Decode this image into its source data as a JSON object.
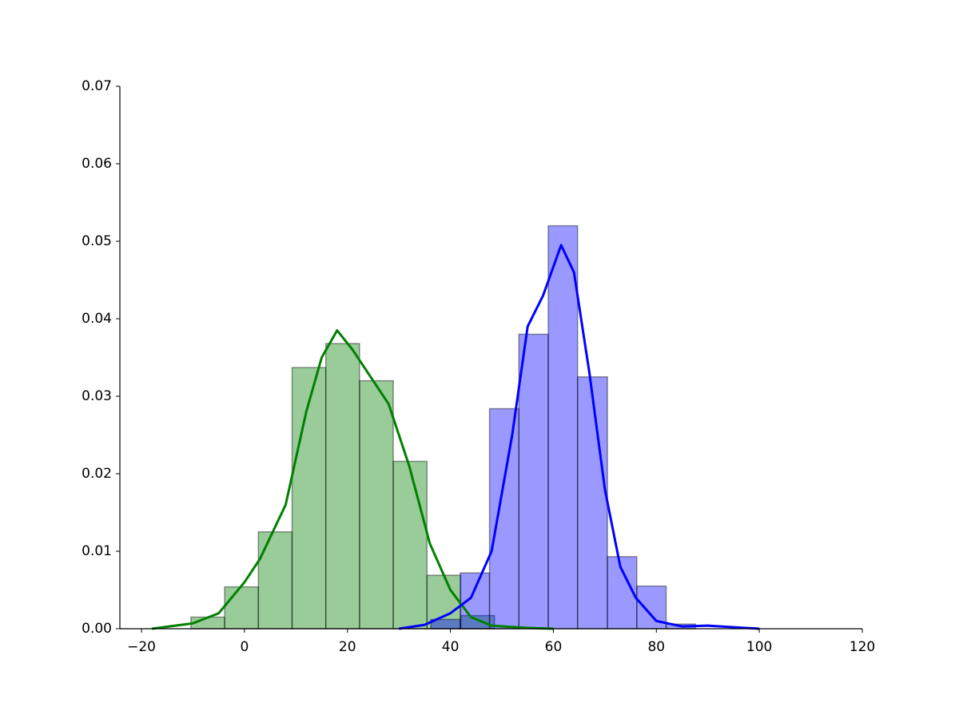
{
  "chart_data": {
    "type": "histogram",
    "xlim": [
      -24.2,
      120
    ],
    "ylim": [
      0,
      0.07
    ],
    "xticks": [
      {
        "value": -20,
        "label": "−20"
      },
      0,
      20,
      40,
      60,
      80,
      100,
      120
    ],
    "yticks": [
      {
        "value": 0,
        "label": "0.00"
      },
      {
        "value": 0.01,
        "label": "0.01"
      },
      {
        "value": 0.02,
        "label": "0.02"
      },
      {
        "value": 0.03,
        "label": "0.03"
      },
      {
        "value": 0.04,
        "label": "0.04"
      },
      {
        "value": 0.05,
        "label": "0.05"
      },
      {
        "value": 0.06,
        "label": "0.06"
      },
      {
        "value": 0.07,
        "label": "0.07"
      }
    ],
    "series": [
      {
        "color": "green",
        "bins": [
          -10.4,
          -3.85,
          2.7,
          9.25,
          15.8,
          22.35,
          28.9,
          35.45,
          42.0,
          48.55
        ],
        "values": [
          0.0015,
          0.0054,
          0.0125,
          0.0337,
          0.0368,
          0.032,
          0.0216,
          0.0069,
          0.0017
        ],
        "kde": {
          "x": [
            -18,
            -10,
            -5,
            0,
            3,
            8,
            12,
            15,
            18,
            21,
            24,
            28,
            32,
            36,
            40,
            44,
            48,
            55,
            60
          ],
          "y": [
            0,
            0.0007,
            0.002,
            0.006,
            0.009,
            0.016,
            0.028,
            0.035,
            0.0385,
            0.036,
            0.033,
            0.029,
            0.021,
            0.011,
            0.005,
            0.0015,
            0.0004,
            0.0001,
            0
          ]
        }
      },
      {
        "color": "blue",
        "bins": [
          36.2,
          41.9,
          47.6,
          53.3,
          59.0,
          64.7,
          70.5,
          76.2,
          81.9,
          87.6
        ],
        "values": [
          0.0012,
          0.0072,
          0.0284,
          0.038,
          0.052,
          0.0325,
          0.0093,
          0.0055,
          0.0006
        ],
        "kde": {
          "x": [
            30,
            35,
            40,
            44,
            48,
            52,
            55,
            58,
            61.5,
            64,
            67,
            70,
            73,
            76,
            80,
            85,
            90,
            95,
            100
          ],
          "y": [
            0,
            0.0005,
            0.002,
            0.004,
            0.01,
            0.025,
            0.039,
            0.043,
            0.0495,
            0.046,
            0.033,
            0.018,
            0.008,
            0.004,
            0.001,
            0.0003,
            0.0004,
            0.0002,
            0
          ]
        }
      }
    ]
  }
}
